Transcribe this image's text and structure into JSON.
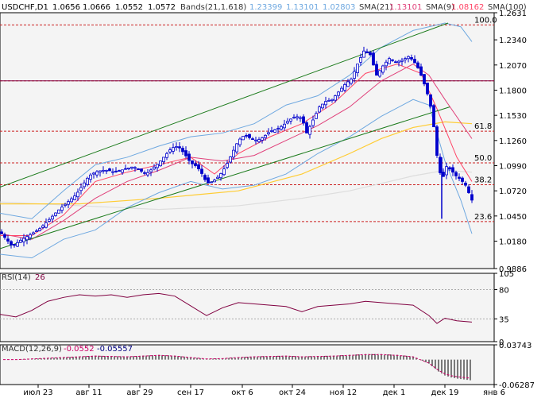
{
  "header": {
    "symbol": "USDCHF,D1",
    "ohlc": [
      "1.0656",
      "1.0666",
      "1.0552",
      "1.0572"
    ],
    "bands_label": "Bands(21,1.618)",
    "bands_values": [
      "1.23399",
      "1.13101",
      "1.02803"
    ],
    "sma21_label": "SMA(21)",
    "sma21_value": "1.13101",
    "sma9_label": "SMA(9)",
    "sma9_value": "1.08162",
    "sma100_label": "SMA(100)"
  },
  "colors": {
    "background": "#ffffff",
    "panel_bg": "#f4f4f4",
    "candle": "#0000cc",
    "band_upper": "#6ea8e0",
    "band_lower": "#6ea8e0",
    "sma21": "#e0407a",
    "sma9": "#ff4466",
    "sma100": "#ffcc33",
    "sma_long": "#dddddd",
    "channel": "#1a7a1a",
    "fib_line": "#cc2222",
    "hline": "#800040",
    "rsi": "#800040",
    "macd": "#000000",
    "macd_signal": "#cc0066"
  },
  "price_axis": {
    "labels": [
      "1.2631",
      "1.2340",
      "1.2070",
      "1.1800",
      "1.1530",
      "1.1260",
      "1.0990",
      "1.0720",
      "1.0450",
      "1.0180",
      "0.9886"
    ],
    "range": [
      0.9886,
      1.2631
    ]
  },
  "fib_levels": [
    {
      "label": "100.0",
      "price": 1.25
    },
    {
      "label": "61.8",
      "price": 1.136
    },
    {
      "label": "50.0",
      "price": 1.102
    },
    {
      "label": "38.2",
      "price": 1.0785
    },
    {
      "label": "23.6",
      "price": 1.039
    }
  ],
  "horizontal_lines": [
    1.25,
    1.19,
    1.136,
    1.102,
    1.0785,
    1.039
  ],
  "date_axis": {
    "labels": [
      "июл 23",
      "авг 11",
      "авг 29",
      "сен 17",
      "окт 6",
      "окт 24",
      "ноя 12",
      "дек 1",
      "дек 19",
      "янв 6"
    ]
  },
  "rsi": {
    "label": "RSI(14)",
    "value": "26",
    "axis_labels": [
      "105",
      "80",
      "35",
      "0"
    ],
    "range": [
      0,
      105
    ],
    "levels": [
      80,
      35
    ]
  },
  "macd": {
    "label": "MACD(12,26,9)",
    "values": [
      "-0.0552",
      "-0.05557"
    ],
    "axis_labels": [
      "0.03743",
      "-0.06287"
    ],
    "range": [
      -0.06287,
      0.03743
    ]
  },
  "chart_data": {
    "type": "candlestick",
    "title": "USDCHF,D1",
    "x_range": [
      "июл 23",
      "янв 6"
    ],
    "y_range": [
      0.9886,
      1.2631
    ],
    "close_path": [
      [
        0,
        1.028
      ],
      [
        8,
        1.02
      ],
      [
        16,
        1.012
      ],
      [
        24,
        1.018
      ],
      [
        32,
        1.022
      ],
      [
        40,
        1.026
      ],
      [
        48,
        1.03
      ],
      [
        56,
        1.036
      ],
      [
        64,
        1.043
      ],
      [
        72,
        1.05
      ],
      [
        80,
        1.056
      ],
      [
        88,
        1.062
      ],
      [
        96,
        1.068
      ],
      [
        104,
        1.078
      ],
      [
        112,
        1.088
      ],
      [
        120,
        1.092
      ],
      [
        128,
        1.094
      ],
      [
        136,
        1.094
      ],
      [
        144,
        1.092
      ],
      [
        152,
        1.094
      ],
      [
        160,
        1.096
      ],
      [
        168,
        1.098
      ],
      [
        176,
        1.094
      ],
      [
        184,
        1.09
      ],
      [
        192,
        1.096
      ],
      [
        200,
        1.102
      ],
      [
        208,
        1.11
      ],
      [
        216,
        1.118
      ],
      [
        224,
        1.12
      ],
      [
        232,
        1.112
      ],
      [
        240,
        1.102
      ],
      [
        248,
        1.098
      ],
      [
        256,
        1.088
      ],
      [
        260,
        1.08
      ],
      [
        268,
        1.082
      ],
      [
        276,
        1.088
      ],
      [
        284,
        1.098
      ],
      [
        292,
        1.112
      ],
      [
        300,
        1.126
      ],
      [
        308,
        1.132
      ],
      [
        316,
        1.128
      ],
      [
        324,
        1.126
      ],
      [
        332,
        1.13
      ],
      [
        340,
        1.136
      ],
      [
        348,
        1.138
      ],
      [
        356,
        1.142
      ],
      [
        364,
        1.148
      ],
      [
        372,
        1.152
      ],
      [
        380,
        1.15
      ],
      [
        386,
        1.134
      ],
      [
        394,
        1.148
      ],
      [
        402,
        1.162
      ],
      [
        410,
        1.168
      ],
      [
        418,
        1.17
      ],
      [
        426,
        1.178
      ],
      [
        434,
        1.186
      ],
      [
        442,
        1.192
      ],
      [
        450,
        1.208
      ],
      [
        458,
        1.222
      ],
      [
        466,
        1.218
      ],
      [
        474,
        1.196
      ],
      [
        482,
        1.206
      ],
      [
        490,
        1.214
      ],
      [
        498,
        1.21
      ],
      [
        506,
        1.212
      ],
      [
        514,
        1.216
      ],
      [
        520,
        1.212
      ],
      [
        526,
        1.204
      ],
      [
        532,
        1.192
      ],
      [
        538,
        1.176
      ],
      [
        544,
        1.156
      ],
      [
        550,
        1.11
      ],
      [
        556,
        1.082
      ],
      [
        562,
        1.098
      ],
      [
        568,
        1.094
      ],
      [
        574,
        1.088
      ],
      [
        580,
        1.084
      ],
      [
        586,
        1.078
      ],
      [
        594,
        1.062
      ]
    ],
    "upper_band": [
      [
        0,
        1.048
      ],
      [
        40,
        1.042
      ],
      [
        80,
        1.072
      ],
      [
        120,
        1.1
      ],
      [
        160,
        1.108
      ],
      [
        200,
        1.12
      ],
      [
        240,
        1.13
      ],
      [
        280,
        1.134
      ],
      [
        320,
        1.144
      ],
      [
        360,
        1.164
      ],
      [
        400,
        1.174
      ],
      [
        440,
        1.196
      ],
      [
        480,
        1.226
      ],
      [
        520,
        1.244
      ],
      [
        560,
        1.252
      ],
      [
        580,
        1.248
      ],
      [
        594,
        1.232
      ]
    ],
    "lower_band": [
      [
        0,
        1.004
      ],
      [
        40,
        1.0
      ],
      [
        80,
        1.02
      ],
      [
        120,
        1.03
      ],
      [
        160,
        1.054
      ],
      [
        200,
        1.07
      ],
      [
        240,
        1.082
      ],
      [
        280,
        1.074
      ],
      [
        320,
        1.078
      ],
      [
        360,
        1.09
      ],
      [
        400,
        1.112
      ],
      [
        440,
        1.13
      ],
      [
        480,
        1.152
      ],
      [
        520,
        1.17
      ],
      [
        540,
        1.164
      ],
      [
        560,
        1.104
      ],
      [
        580,
        1.062
      ],
      [
        594,
        1.026
      ]
    ],
    "sma21": [
      [
        0,
        1.026
      ],
      [
        40,
        1.02
      ],
      [
        80,
        1.04
      ],
      [
        120,
        1.064
      ],
      [
        160,
        1.082
      ],
      [
        200,
        1.094
      ],
      [
        240,
        1.108
      ],
      [
        280,
        1.104
      ],
      [
        320,
        1.11
      ],
      [
        360,
        1.126
      ],
      [
        400,
        1.142
      ],
      [
        440,
        1.162
      ],
      [
        480,
        1.19
      ],
      [
        520,
        1.208
      ],
      [
        540,
        1.196
      ],
      [
        560,
        1.17
      ],
      [
        594,
        1.128
      ]
    ],
    "sma9": [
      [
        0,
        1.024
      ],
      [
        40,
        1.024
      ],
      [
        80,
        1.046
      ],
      [
        120,
        1.082
      ],
      [
        160,
        1.092
      ],
      [
        200,
        1.1
      ],
      [
        240,
        1.108
      ],
      [
        270,
        1.09
      ],
      [
        300,
        1.112
      ],
      [
        340,
        1.13
      ],
      [
        380,
        1.144
      ],
      [
        420,
        1.166
      ],
      [
        460,
        1.198
      ],
      [
        500,
        1.208
      ],
      [
        530,
        1.198
      ],
      [
        550,
        1.16
      ],
      [
        575,
        1.108
      ],
      [
        594,
        1.082
      ]
    ],
    "sma100": [
      [
        0,
        1.058
      ],
      [
        100,
        1.058
      ],
      [
        200,
        1.064
      ],
      [
        300,
        1.072
      ],
      [
        380,
        1.09
      ],
      [
        440,
        1.112
      ],
      [
        480,
        1.128
      ],
      [
        520,
        1.14
      ],
      [
        560,
        1.146
      ],
      [
        594,
        1.144
      ]
    ],
    "sma_long": [
      [
        0,
        1.06
      ],
      [
        100,
        1.056
      ],
      [
        200,
        1.052
      ],
      [
        300,
        1.056
      ],
      [
        380,
        1.064
      ],
      [
        440,
        1.072
      ],
      [
        480,
        1.08
      ],
      [
        520,
        1.088
      ],
      [
        560,
        1.094
      ],
      [
        594,
        1.092
      ]
    ],
    "channel_upper": [
      [
        0,
        1.076
      ],
      [
        564,
        1.252
      ]
    ],
    "channel_lower": [
      [
        0,
        1.01
      ],
      [
        566,
        1.162
      ]
    ],
    "rsi_series": [
      [
        0,
        42
      ],
      [
        20,
        38
      ],
      [
        40,
        48
      ],
      [
        60,
        62
      ],
      [
        80,
        68
      ],
      [
        100,
        72
      ],
      [
        120,
        70
      ],
      [
        140,
        72
      ],
      [
        160,
        68
      ],
      [
        180,
        72
      ],
      [
        200,
        74
      ],
      [
        220,
        70
      ],
      [
        240,
        55
      ],
      [
        260,
        40
      ],
      [
        280,
        52
      ],
      [
        300,
        60
      ],
      [
        320,
        58
      ],
      [
        340,
        56
      ],
      [
        360,
        54
      ],
      [
        380,
        46
      ],
      [
        400,
        54
      ],
      [
        420,
        56
      ],
      [
        440,
        58
      ],
      [
        460,
        62
      ],
      [
        480,
        60
      ],
      [
        500,
        58
      ],
      [
        520,
        56
      ],
      [
        540,
        40
      ],
      [
        550,
        28
      ],
      [
        560,
        36
      ],
      [
        575,
        32
      ],
      [
        594,
        30
      ]
    ],
    "macd_hist": [
      [
        20,
        0.0
      ],
      [
        40,
        0.002
      ],
      [
        60,
        0.004
      ],
      [
        80,
        0.006
      ],
      [
        100,
        0.008
      ],
      [
        120,
        0.01
      ],
      [
        140,
        0.009
      ],
      [
        160,
        0.008
      ],
      [
        180,
        0.01
      ],
      [
        200,
        0.012
      ],
      [
        220,
        0.01
      ],
      [
        240,
        0.006
      ],
      [
        260,
        0.002
      ],
      [
        280,
        0.003
      ],
      [
        300,
        0.006
      ],
      [
        320,
        0.008
      ],
      [
        340,
        0.009
      ],
      [
        360,
        0.01
      ],
      [
        380,
        0.008
      ],
      [
        400,
        0.009
      ],
      [
        420,
        0.01
      ],
      [
        440,
        0.012
      ],
      [
        460,
        0.014
      ],
      [
        480,
        0.014
      ],
      [
        500,
        0.012
      ],
      [
        520,
        0.008
      ],
      [
        540,
        -0.01
      ],
      [
        552,
        -0.03
      ],
      [
        560,
        -0.04
      ],
      [
        568,
        -0.045
      ],
      [
        576,
        -0.048
      ],
      [
        584,
        -0.05
      ],
      [
        592,
        -0.052
      ]
    ]
  }
}
